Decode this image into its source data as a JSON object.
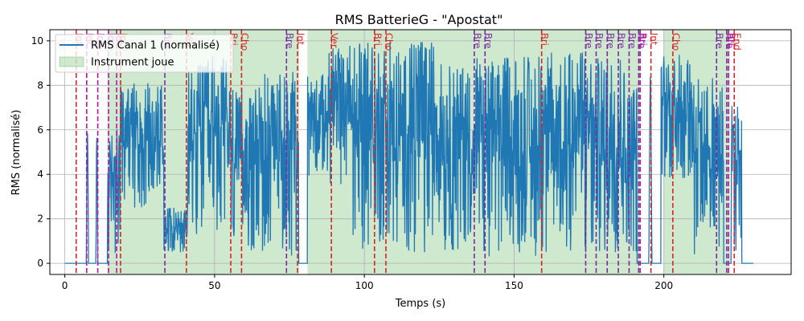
{
  "chart_data": {
    "type": "line",
    "title": "RMS BatterieG - \"Apostat\"",
    "xlabel": "Temps (s)",
    "ylabel": "RMS (normalisé)",
    "xlim": [
      -5,
      242.5
    ],
    "ylim": [
      -0.5,
      10.5
    ],
    "xticks": [
      0,
      50,
      100,
      150,
      200
    ],
    "yticks": [
      0,
      2,
      4,
      6,
      8,
      10
    ],
    "grid": true,
    "legend_position": "top-left",
    "legend": [
      {
        "label": "RMS Canal 1 (normalisé)",
        "kind": "line",
        "color": "#1f77b4"
      },
      {
        "label": "Instrument joue",
        "kind": "patch",
        "color": "#2ca02c"
      }
    ],
    "series": [
      {
        "name": "RMS Canal 1 (normalisé)",
        "color": "#1f77b4",
        "kind": "envelope",
        "baseline": 0,
        "segments": [
          {
            "start": 7.2,
            "end": 7.9,
            "low": 0.2,
            "high": 6.9
          },
          {
            "start": 10.4,
            "end": 11.0,
            "low": 0.2,
            "high": 6.7
          },
          {
            "start": 14.2,
            "end": 16.5,
            "low": 0.5,
            "high": 5.8
          },
          {
            "start": 16.5,
            "end": 18.5,
            "low": 0.3,
            "high": 6.1
          },
          {
            "start": 18.5,
            "end": 33,
            "low": 2.5,
            "high": 8.2
          },
          {
            "start": 33,
            "end": 41,
            "low": 0.5,
            "high": 2.5
          },
          {
            "start": 41,
            "end": 55,
            "low": 1.0,
            "high": 9.3
          },
          {
            "start": 55,
            "end": 66,
            "low": 0.5,
            "high": 8.0
          },
          {
            "start": 66,
            "end": 78,
            "low": 0.3,
            "high": 8.6
          },
          {
            "start": 81,
            "end": 88,
            "low": 3.7,
            "high": 8.6
          },
          {
            "start": 88,
            "end": 96,
            "low": 3.5,
            "high": 9.8
          },
          {
            "start": 96,
            "end": 124,
            "low": 0.5,
            "high": 10.0
          },
          {
            "start": 124,
            "end": 137,
            "low": 0.3,
            "high": 9.0
          },
          {
            "start": 137,
            "end": 160,
            "low": 0.3,
            "high": 9.3
          },
          {
            "start": 160,
            "end": 174,
            "low": 0.3,
            "high": 9.5
          },
          {
            "start": 174,
            "end": 187,
            "low": 0.2,
            "high": 9.4
          },
          {
            "start": 187,
            "end": 191,
            "low": 0.2,
            "high": 8.0
          },
          {
            "start": 195,
            "end": 196,
            "low": 0.3,
            "high": 9.2
          },
          {
            "start": 199,
            "end": 210,
            "low": 3.8,
            "high": 9.4
          },
          {
            "start": 210,
            "end": 220,
            "low": 0.3,
            "high": 8.7
          },
          {
            "start": 222.5,
            "end": 226,
            "low": 0.3,
            "high": 7.9
          }
        ]
      }
    ],
    "shaded_regions": [
      {
        "start": 14.2,
        "end": 78.2,
        "label": "Instrument joue"
      },
      {
        "start": 81.0,
        "end": 192.0,
        "label": "Instrument joue"
      },
      {
        "start": 200.0,
        "end": 222.0,
        "label": "Instrument joue"
      }
    ],
    "section_markers": [
      {
        "x": 3.8,
        "label": "Int",
        "color": "#d62728"
      },
      {
        "x": 7.3,
        "label": "Int",
        "color": "#b5179e"
      },
      {
        "x": 11.0,
        "label": "Int",
        "color": "#b5179e"
      },
      {
        "x": 14.6,
        "label": "Int",
        "color": "#b5179e"
      },
      {
        "x": 17.3,
        "label": "Int",
        "color": "#b5179e"
      },
      {
        "x": 18.6,
        "label": "Int",
        "color": "#d62728"
      },
      {
        "x": 33.4,
        "label": "Bre",
        "color": "#7b2d9e"
      },
      {
        "x": 40.6,
        "label": "Ver",
        "color": "#d62728"
      },
      {
        "x": 55.4,
        "label": "Bri",
        "color": "#d62728"
      },
      {
        "x": 59.0,
        "label": "Cho",
        "color": "#d62728"
      },
      {
        "x": 74.0,
        "label": "Bre",
        "color": "#7b2d9e"
      },
      {
        "x": 77.7,
        "label": "Int",
        "color": "#d62728"
      },
      {
        "x": 89.0,
        "label": "Ver",
        "color": "#d62728"
      },
      {
        "x": 103.4,
        "label": "Bri",
        "color": "#d62728"
      },
      {
        "x": 107.2,
        "label": "Cho",
        "color": "#d62728"
      },
      {
        "x": 136.7,
        "label": "Bre",
        "color": "#7b2d9e"
      },
      {
        "x": 140.3,
        "label": "Bre",
        "color": "#7b2d9e"
      },
      {
        "x": 159.2,
        "label": "Bri",
        "color": "#d62728"
      },
      {
        "x": 173.9,
        "label": "Bre",
        "color": "#7b2d9e"
      },
      {
        "x": 177.4,
        "label": "Bre",
        "color": "#7b2d9e"
      },
      {
        "x": 181.1,
        "label": "Bre",
        "color": "#7b2d9e"
      },
      {
        "x": 184.8,
        "label": "Bre",
        "color": "#7b2d9e"
      },
      {
        "x": 188.4,
        "label": "Bre",
        "color": "#7b2d9e"
      },
      {
        "x": 191.6,
        "label": "Bre",
        "color": "#7b2d9e"
      },
      {
        "x": 192.1,
        "label": "Bri",
        "color": "#b5179e"
      },
      {
        "x": 195.7,
        "label": "Int",
        "color": "#d62728"
      },
      {
        "x": 203.0,
        "label": "Cho",
        "color": "#d62728"
      },
      {
        "x": 217.6,
        "label": "Bre",
        "color": "#7b2d9e"
      },
      {
        "x": 221.0,
        "label": "Bre",
        "color": "#7b2d9e"
      },
      {
        "x": 221.6,
        "label": "Bri",
        "color": "#b5179e"
      },
      {
        "x": 223.5,
        "label": "End",
        "color": "#d62728"
      }
    ]
  }
}
